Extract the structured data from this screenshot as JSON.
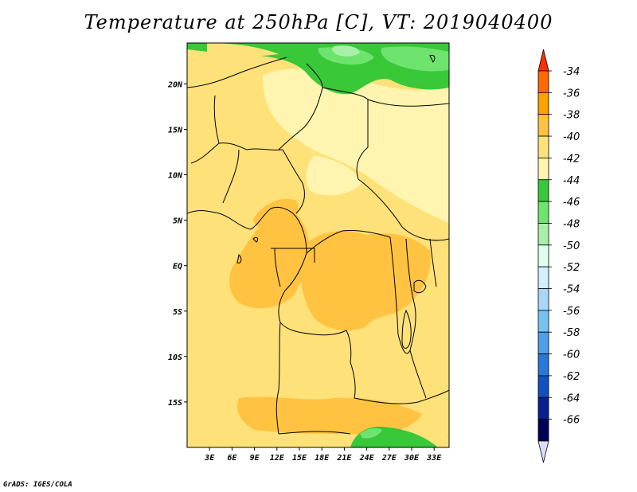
{
  "title": "Temperature at 250hPa [C], VT: 2019040400",
  "credit": "GrADS: IGES/COLA",
  "map": {
    "lon_range": [
      0,
      35
    ],
    "lat_range": [
      -20,
      24.5
    ],
    "lon_ticks": [
      "3E",
      "6E",
      "9E",
      "12E",
      "15E",
      "18E",
      "21E",
      "24E",
      "27E",
      "30E",
      "33E"
    ],
    "lon_tick_values": [
      3,
      6,
      9,
      12,
      15,
      18,
      21,
      24,
      27,
      30,
      33
    ],
    "lat_ticks": [
      "20N",
      "15N",
      "10N",
      "5N",
      "EQ",
      "5S",
      "10S",
      "15S"
    ],
    "lat_tick_values": [
      20,
      15,
      10,
      5,
      0,
      -5,
      -10,
      -15
    ]
  },
  "colorbar": {
    "labels": [
      "-34",
      "-36",
      "-38",
      "-40",
      "-42",
      "-44",
      "-46",
      "-48",
      "-50",
      "-52",
      "-54",
      "-56",
      "-58",
      "-60",
      "-62",
      "-64",
      "-66"
    ],
    "colors": [
      "#ff3000",
      "#ff6a00",
      "#ffa100",
      "#ffc341",
      "#ffe17a",
      "#fff5b0",
      "#38c838",
      "#6ee36e",
      "#a8f0a8",
      "#e0fff0",
      "#d0f0ff",
      "#a8d8f8",
      "#78c0f0",
      "#4ca0e8",
      "#2878d8",
      "#1050c0",
      "#082090",
      "#000058",
      "#dcdcff"
    ]
  }
}
